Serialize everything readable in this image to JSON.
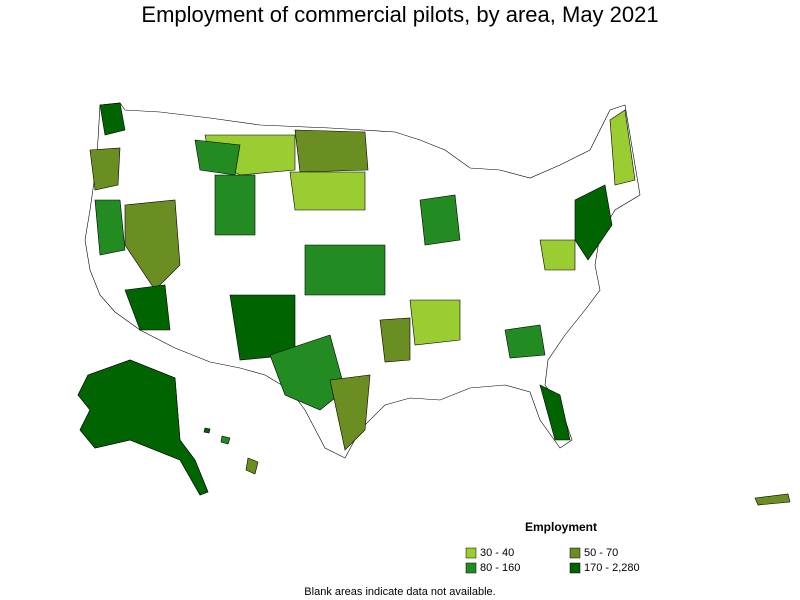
{
  "title": "Employment of commercial pilots, by area, May 2021",
  "legend": {
    "title": "Employment",
    "items": [
      {
        "label": "30 - 40",
        "color": "#9acd32"
      },
      {
        "label": "50 - 70",
        "color": "#6b8e23"
      },
      {
        "label": "80 - 160",
        "color": "#228b22"
      },
      {
        "label": "170 - 2,280",
        "color": "#006400"
      }
    ]
  },
  "note": "Blank areas indicate data not available."
}
